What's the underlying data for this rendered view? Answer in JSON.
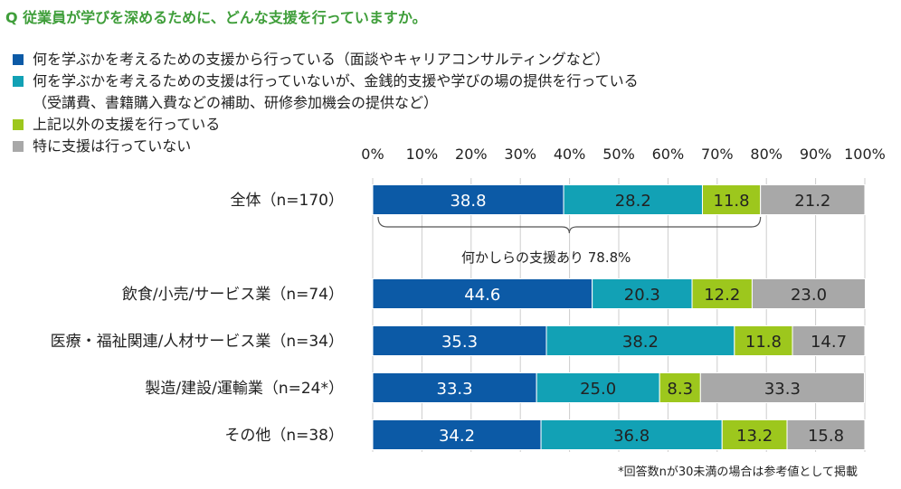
{
  "title": "Q 従業員が学びを深めるために、どんな支援を行っていますか。",
  "legend": [
    {
      "lines": [
        "何を学ぶかを考えるための支援から行っている（面談やキャリアコンサルティングなど）"
      ],
      "color": "#0c5aa6"
    },
    {
      "lines": [
        "何を学ぶかを考えるための支援は行っていないが、金銭的支援や学びの場の提供を行っている",
        "（受講費、書籍購入費などの補助、研修参加機会の提供など）"
      ],
      "color": "#12a1b5"
    },
    {
      "lines": [
        "上記以外の支援を行っている"
      ],
      "color": "#9dc71d"
    },
    {
      "lines": [
        "特に支援は行っていない"
      ],
      "color": "#a8a8a8"
    }
  ],
  "bracket_label": "何かしらの支援あり 78.8%",
  "footnote": "*回答数nが30未満の場合は参考値として掲載",
  "chart_data": {
    "type": "bar",
    "orientation": "horizontal",
    "stacked": true,
    "xlim": [
      0,
      100
    ],
    "ticks": [
      "0%",
      "10%",
      "20%",
      "30%",
      "40%",
      "50%",
      "60%",
      "70%",
      "80%",
      "90%",
      "100%"
    ],
    "categories": [
      "全体（n=170）",
      "飲食/小売/サービス業（n=74）",
      "医療・福祉関連/人材サービス業（n=34）",
      "製造/建設/運輸業（n=24*）",
      "その他（n=38）"
    ],
    "series": [
      {
        "name": "何を学ぶかを考えるための支援から行っている（面談やキャリアコンサルティングなど）",
        "color": "#0c5aa6",
        "label_color": "#ffffff",
        "values": [
          38.8,
          44.6,
          35.3,
          33.3,
          34.2
        ]
      },
      {
        "name": "何を学ぶかを考えるための支援は行っていないが、金銭的支援や学びの場の提供を行っている（受講費、書籍購入費などの補助、研修参加機会の提供など）",
        "color": "#12a1b5",
        "label_color": "#222222",
        "values": [
          28.2,
          20.3,
          38.2,
          25.0,
          36.8
        ]
      },
      {
        "name": "上記以外の支援を行っている",
        "color": "#9dc71d",
        "label_color": "#222222",
        "values": [
          11.8,
          12.2,
          11.8,
          8.3,
          13.2
        ]
      },
      {
        "name": "特に支援は行っていない",
        "color": "#a8a8a8",
        "label_color": "#222222",
        "values": [
          21.2,
          23.0,
          14.7,
          33.3,
          15.8
        ]
      }
    ],
    "bracket_value": 78.8,
    "grid": true
  }
}
